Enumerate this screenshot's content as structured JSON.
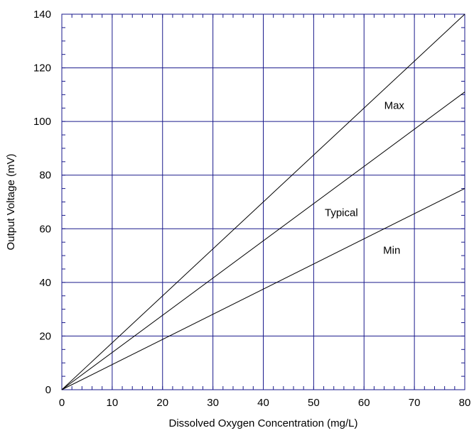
{
  "chart_data": {
    "type": "line",
    "title": "",
    "xlabel": "Dissolved Oxygen Concentration (mg/L)",
    "ylabel": "Output Voltage (mV)",
    "xlim": [
      0,
      80
    ],
    "ylim": [
      0,
      140
    ],
    "x_ticks": [
      0,
      10,
      20,
      30,
      40,
      50,
      60,
      70,
      80
    ],
    "y_ticks": [
      0,
      20,
      40,
      60,
      80,
      100,
      120,
      140
    ],
    "grid": true,
    "legend": "none",
    "series": [
      {
        "name": "Max",
        "x": [
          0,
          80
        ],
        "y": [
          0,
          140
        ]
      },
      {
        "name": "Typical",
        "x": [
          0,
          80
        ],
        "y": [
          0,
          111
        ]
      },
      {
        "name": "Min",
        "x": [
          0,
          80
        ],
        "y": [
          0,
          75
        ]
      }
    ],
    "annotations": [
      {
        "text": "Max",
        "x": 66,
        "y": 106
      },
      {
        "text": "Typical",
        "x": 55.5,
        "y": 66
      },
      {
        "text": "Min",
        "x": 65.5,
        "y": 52
      }
    ]
  },
  "colors": {
    "grid": "#1a1a8c",
    "frame": "#1a1a8c",
    "line": "#000000",
    "background": "#ffffff"
  }
}
